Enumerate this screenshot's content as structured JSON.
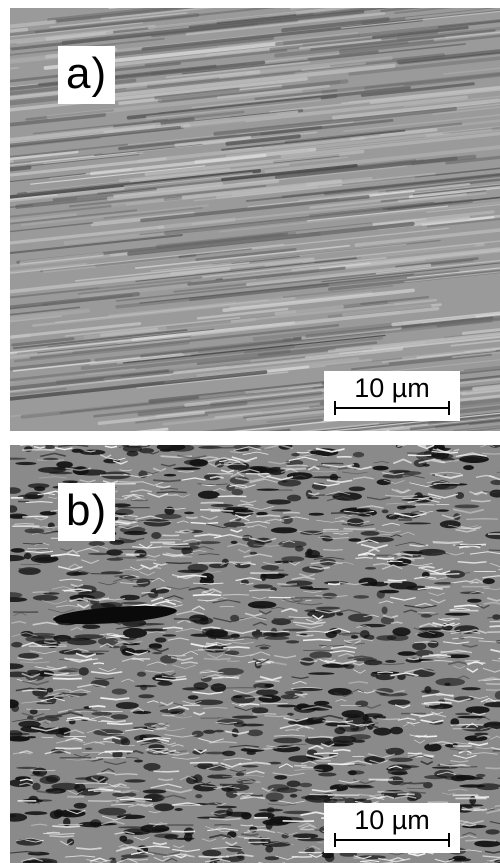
{
  "panels": [
    {
      "label": "a)",
      "scale_bar": {
        "text": "10 µm"
      },
      "texture": "fine parallel grooves, slightly tilted",
      "base_color": "#9a9a9a"
    },
    {
      "label": "b)",
      "scale_bar": {
        "text": "10 µm"
      },
      "texture": "rough ridged surface with dark pits",
      "base_color": "#8a8a8a"
    }
  ]
}
